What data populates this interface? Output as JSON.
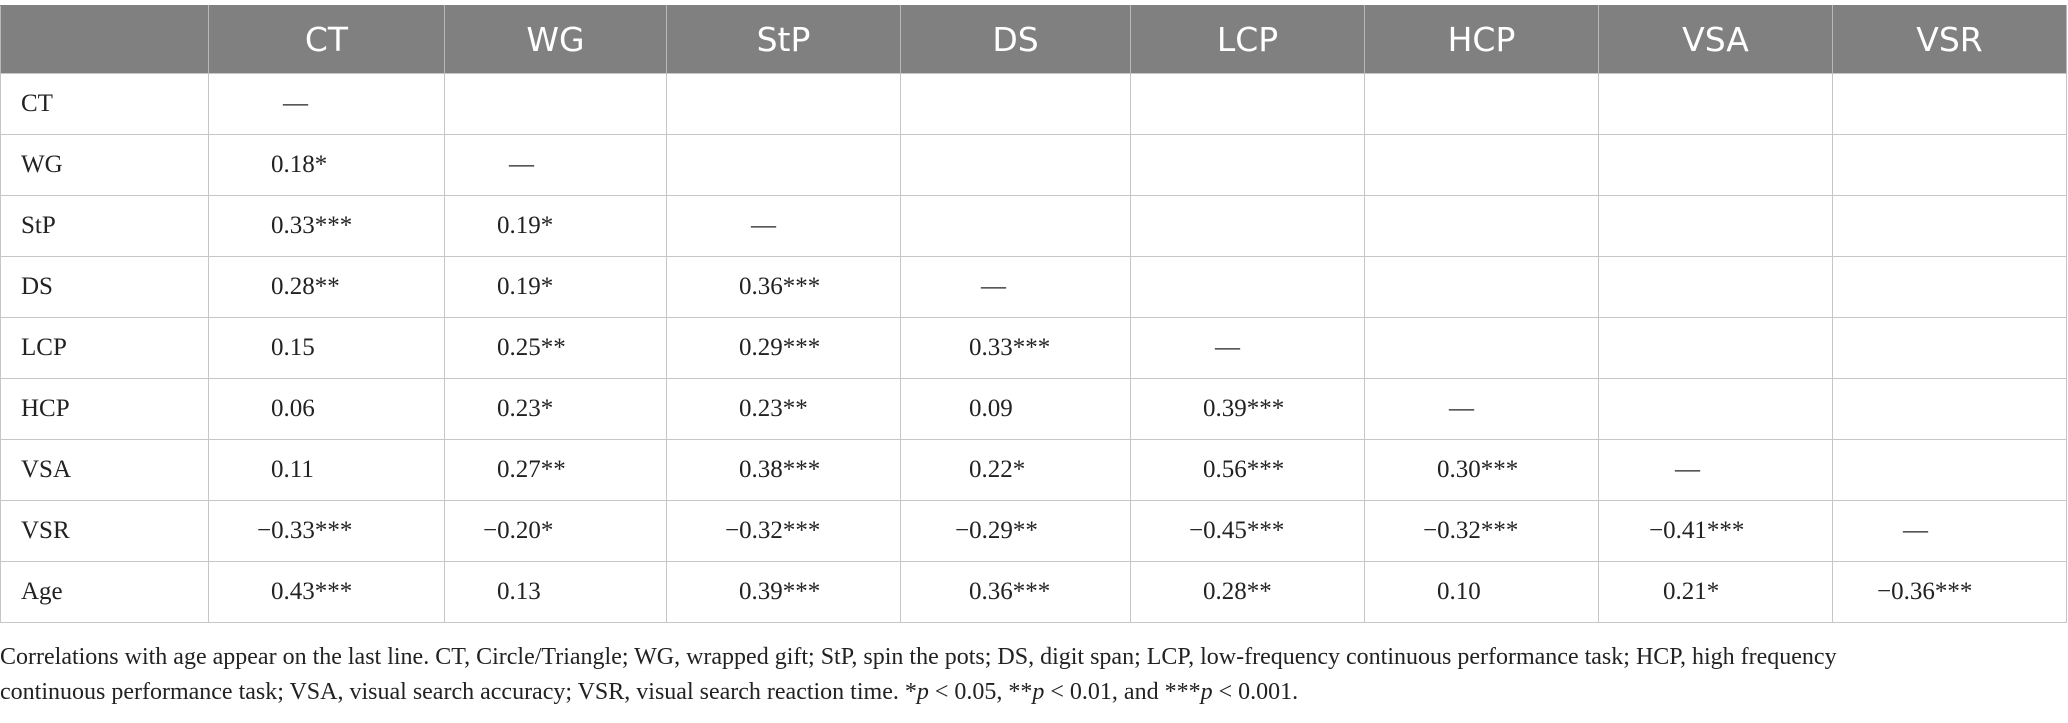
{
  "table": {
    "corner": "",
    "headers": [
      "CT",
      "WG",
      "StP",
      "DS",
      "LCP",
      "HCP",
      "VSA",
      "VSR"
    ],
    "rows": [
      {
        "label": "CT",
        "cells": [
          "—",
          "",
          "",
          "",
          "",
          "",
          "",
          ""
        ]
      },
      {
        "label": "WG",
        "cells": [
          "0.18*",
          "—",
          "",
          "",
          "",
          "",
          "",
          ""
        ]
      },
      {
        "label": "StP",
        "cells": [
          "0.33***",
          "0.19*",
          "—",
          "",
          "",
          "",
          "",
          ""
        ]
      },
      {
        "label": "DS",
        "cells": [
          "0.28**",
          "0.19*",
          "0.36***",
          "—",
          "",
          "",
          "",
          ""
        ]
      },
      {
        "label": "LCP",
        "cells": [
          "0.15",
          "0.25**",
          "0.29***",
          "0.33***",
          "—",
          "",
          "",
          ""
        ]
      },
      {
        "label": "HCP",
        "cells": [
          "0.06",
          "0.23*",
          "0.23**",
          "0.09",
          "0.39***",
          "—",
          "",
          ""
        ]
      },
      {
        "label": "VSA",
        "cells": [
          "0.11",
          "0.27**",
          "0.38***",
          "0.22*",
          "0.56***",
          "0.30***",
          "—",
          ""
        ]
      },
      {
        "label": "VSR",
        "cells": [
          "−0.33***",
          "−0.20*",
          "−0.32***",
          "−0.29**",
          "−0.45***",
          "−0.32***",
          "−0.41***",
          "—"
        ]
      },
      {
        "label": "Age",
        "cells": [
          "0.43***",
          "0.13",
          "0.39***",
          "0.36***",
          "0.28**",
          "0.10",
          "0.21*",
          "−0.36***"
        ]
      }
    ]
  },
  "caption": {
    "line1": "Correlations with age appear on the last line. CT, Circle/Triangle; WG, wrapped gift; StP, spin the pots; DS, digit span; LCP, low-frequency continuous performance task; HCP, high frequency",
    "line2a": "continuous performance task; VSA, visual search accuracy; VSR, visual search reaction time. *",
    "p1": "p",
    "line2b": " < 0.05, **",
    "p2": "p",
    "line2c": " < 0.01, and ***",
    "p3": "p",
    "line2d": " < 0.001."
  },
  "colors": {
    "header_bg": "#808080",
    "header_text": "#ffffff",
    "grid": "#c6c6c6",
    "body_text": "#222222"
  }
}
